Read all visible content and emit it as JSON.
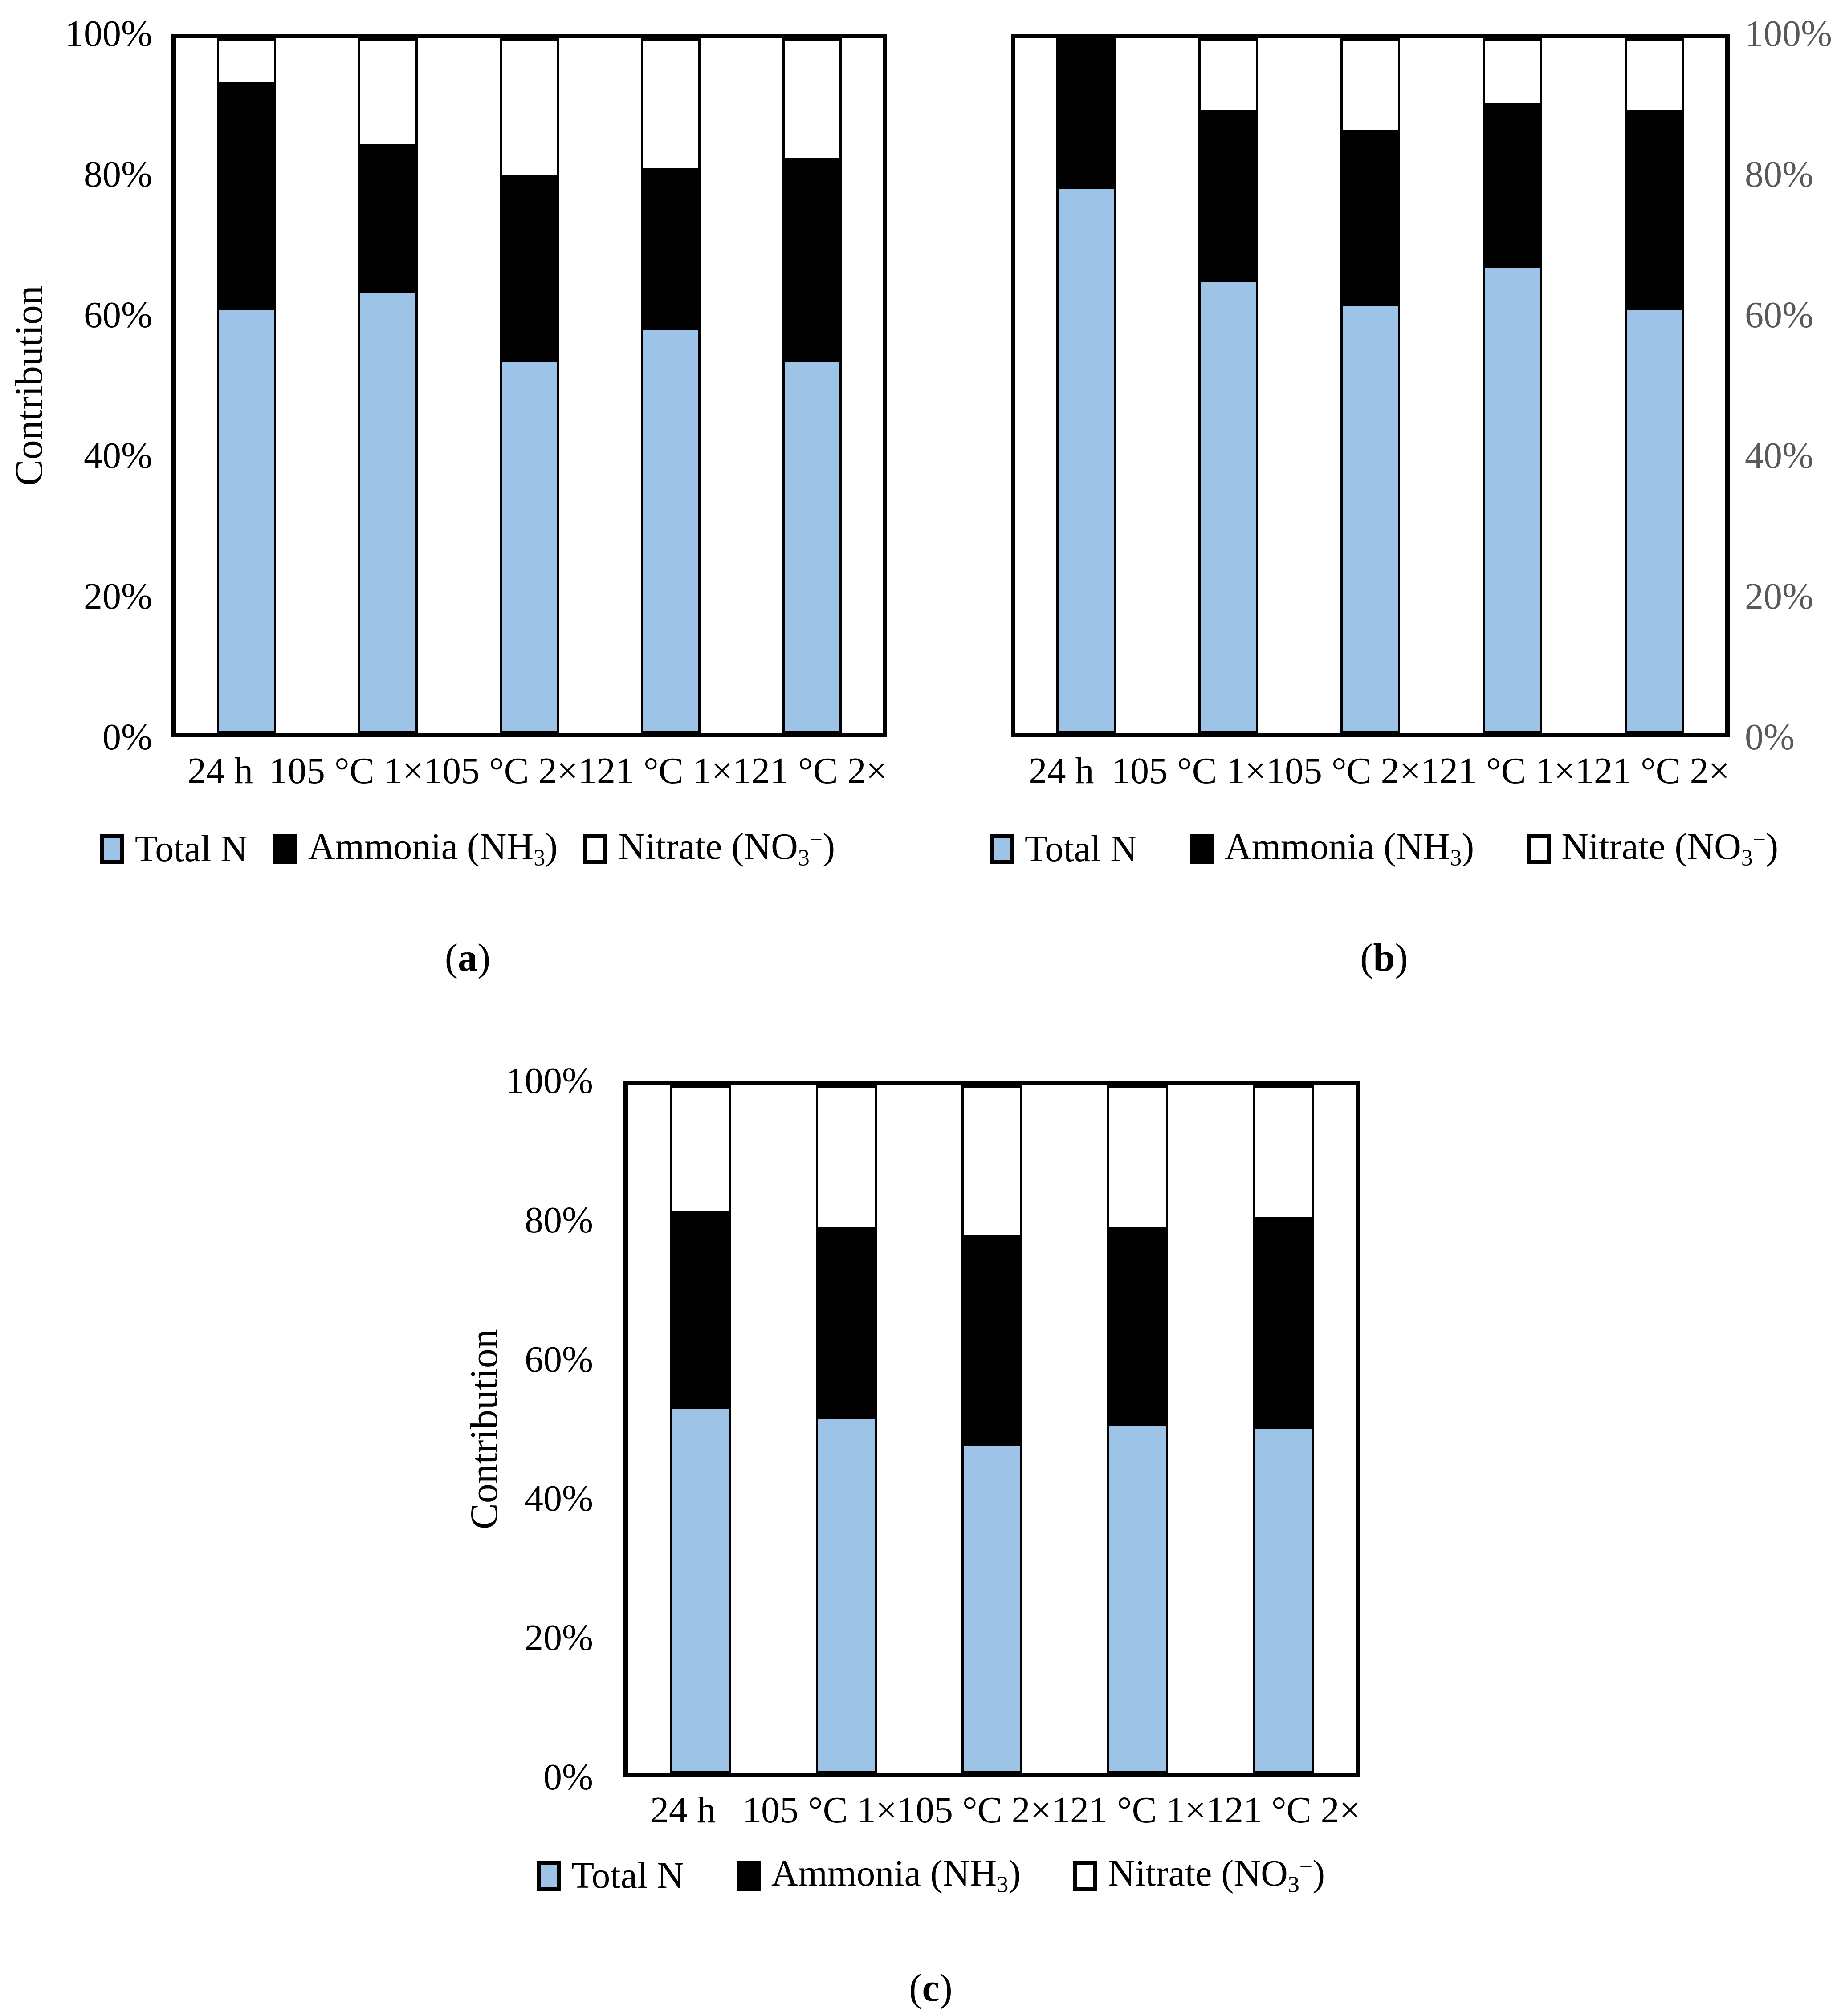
{
  "chart_data": [
    {
      "type": "bar",
      "subtype": "percent-stacked-column",
      "panel": {
        "open": "(",
        "letter": "a",
        "close": ")"
      },
      "title": "",
      "ylabel": "Contribution",
      "xlabel": "",
      "y_axis_side": "left",
      "ylim": [
        0,
        100
      ],
      "grid": false,
      "legend_position": "bottom",
      "y_ticks": [
        {
          "value": 0,
          "label": "0%"
        },
        {
          "value": 20,
          "label": "20%"
        },
        {
          "value": 40,
          "label": "40%"
        },
        {
          "value": 60,
          "label": "60%"
        },
        {
          "value": 80,
          "label": "80%"
        },
        {
          "value": 100,
          "label": "100%"
        }
      ],
      "categories": [
        "24 h",
        "105 °C 1×",
        "105 °C 2×",
        "121 °C 1×",
        "121 °C 2×"
      ],
      "series": [
        {
          "name": "Total N",
          "color": "#9DC3E6",
          "label": {
            "pre": "Total N",
            "sub": "",
            "sup": "",
            "post": ""
          },
          "values": [
            61,
            63.5,
            53.5,
            58,
            53.5
          ]
        },
        {
          "name": "Ammonia (NH3)",
          "color": "#000000",
          "label": {
            "pre": "Ammonia (NH",
            "sub": "3",
            "sup": "",
            "post": ")"
          },
          "values": [
            33,
            21.5,
            27,
            23.5,
            29.5
          ]
        },
        {
          "name": "Nitrate (NO3-)",
          "color": "#FFFFFF",
          "label": {
            "pre": "Nitrate (NO",
            "sub": "3",
            "sup": "−",
            "post": ")"
          },
          "values": [
            6,
            15,
            19.5,
            18.5,
            17
          ]
        }
      ]
    },
    {
      "type": "bar",
      "subtype": "percent-stacked-column",
      "panel": {
        "open": "(",
        "letter": "b",
        "close": ")"
      },
      "title": "",
      "ylabel": "",
      "xlabel": "",
      "y_axis_side": "right",
      "ylim": [
        0,
        100
      ],
      "grid": false,
      "legend_position": "bottom",
      "y_ticks": [
        {
          "value": 0,
          "label": "0%"
        },
        {
          "value": 20,
          "label": "20%"
        },
        {
          "value": 40,
          "label": "40%"
        },
        {
          "value": 60,
          "label": "60%"
        },
        {
          "value": 80,
          "label": "80%"
        },
        {
          "value": 100,
          "label": "100%"
        }
      ],
      "categories": [
        "24 h",
        "105 °C 1×",
        "105 °C 2×",
        "121 °C 1×",
        "121 °C 2×"
      ],
      "series": [
        {
          "name": "Total N",
          "color": "#9DC3E6",
          "label": {
            "pre": "Total N",
            "sub": "",
            "sup": "",
            "post": ""
          },
          "values": [
            78.5,
            65,
            61.5,
            67,
            61
          ]
        },
        {
          "name": "Ammonia (NH3)",
          "color": "#000000",
          "label": {
            "pre": "Ammonia (NH",
            "sub": "3",
            "sup": "",
            "post": ")"
          },
          "values": [
            21.5,
            25,
            25.5,
            24,
            29
          ]
        },
        {
          "name": "Nitrate (NO3-)",
          "color": "#FFFFFF",
          "label": {
            "pre": "Nitrate (NO",
            "sub": "3",
            "sup": "−",
            "post": ")"
          },
          "values": [
            0,
            10,
            13,
            9,
            10
          ]
        }
      ]
    },
    {
      "type": "bar",
      "subtype": "percent-stacked-column",
      "panel": {
        "open": "(",
        "letter": "c",
        "close": ")"
      },
      "title": "",
      "ylabel": "Contribution",
      "xlabel": "",
      "y_axis_side": "left",
      "ylim": [
        0,
        100
      ],
      "grid": false,
      "legend_position": "bottom",
      "y_ticks": [
        {
          "value": 0,
          "label": "0%"
        },
        {
          "value": 20,
          "label": "20%"
        },
        {
          "value": 40,
          "label": "40%"
        },
        {
          "value": 60,
          "label": "60%"
        },
        {
          "value": 80,
          "label": "80%"
        },
        {
          "value": 100,
          "label": "100%"
        }
      ],
      "categories": [
        "24 h",
        "105 °C 1×",
        "105 °C 2×",
        "121 °C 1×",
        "121 °C 2×"
      ],
      "series": [
        {
          "name": "Total N",
          "color": "#9DC3E6",
          "label": {
            "pre": "Total N",
            "sub": "",
            "sup": "",
            "post": ""
          },
          "values": [
            53,
            51.5,
            47.5,
            50.5,
            50
          ]
        },
        {
          "name": "Ammonia (NH3)",
          "color": "#000000",
          "label": {
            "pre": "Ammonia (NH",
            "sub": "3",
            "sup": "",
            "post": ")"
          },
          "values": [
            29,
            28,
            31,
            29,
            31
          ]
        },
        {
          "name": "Nitrate (NO3-)",
          "color": "#FFFFFF",
          "label": {
            "pre": "Nitrate (NO",
            "sub": "3",
            "sup": "−",
            "post": ")"
          },
          "values": [
            18,
            20.5,
            21.5,
            20.5,
            19
          ]
        }
      ]
    }
  ]
}
